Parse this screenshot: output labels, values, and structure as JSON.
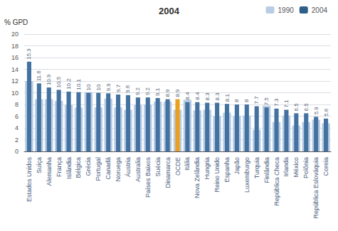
{
  "chart_data": {
    "type": "bar",
    "title": "2004",
    "ylabel": "% GPD",
    "categories": [
      "Estados Unidos",
      "Suíça",
      "Alemanha",
      "França",
      "Islândia",
      "Bélgica",
      "Grécia",
      "Portugal",
      "Canadá",
      "Noruega",
      "Áustria",
      "Australia",
      "Países Baixos",
      "Suécia",
      "Dinamarca",
      "OCDE",
      "Itália",
      "Nova Zelândia",
      "Hungria",
      "Reino Unido",
      "Espanha",
      "Japão",
      "Luxemburgo",
      "Turquia",
      "Finlândia",
      "República Checa",
      "Irlanda",
      "México",
      "Polônia",
      "República Eslováquia",
      "Coreia"
    ],
    "series": [
      {
        "name": "1990",
        "color": "#b8cce4",
        "values": [
          12.0,
          8.9,
          8.9,
          8.6,
          7.9,
          7.5,
          10.1,
          7.5,
          9.0,
          7.5,
          7.1,
          7.9,
          8.0,
          8.5,
          8.5,
          7.1,
          8.8,
          7.0,
          7.1,
          6.0,
          6.6,
          6.0,
          6.1,
          3.7,
          7.8,
          5.0,
          6.1,
          4.4,
          5.0,
          5.4,
          4.8
        ]
      },
      {
        "name": "2004",
        "color": "#2e5f8a",
        "data_labels": true,
        "colors": [
          "#4472a0",
          "#4472a0",
          "#4472a0",
          "#4472a0",
          "#4472a0",
          "#4472a0",
          "#4472a0",
          "#4472a0",
          "#4472a0",
          "#4472a0",
          "#4472a0",
          "#4472a0",
          "#4472a0",
          "#4472a0",
          "#4472a0",
          "#e8a020",
          "#4472a0",
          "#4472a0",
          "#4472a0",
          "#4472a0",
          "#4472a0",
          "#4472a0",
          "#4472a0",
          "#4472a0",
          "#4472a0",
          "#4472a0",
          "#4472a0",
          "#4472a0",
          "#4472a0",
          "#4472a0",
          "#4472a0"
        ],
        "values": [
          15.3,
          11.6,
          10.9,
          10.5,
          10.2,
          10.1,
          10.0,
          10.0,
          9.9,
          9.7,
          9.6,
          9.2,
          9.2,
          9.1,
          8.9,
          8.9,
          8.4,
          8.4,
          8.3,
          8.3,
          8.1,
          8.0,
          8.0,
          7.7,
          7.5,
          7.3,
          7.1,
          6.5,
          6.5,
          5.9,
          5.6
        ]
      }
    ],
    "ylim": [
      0,
      20
    ],
    "yticks": [
      0,
      2,
      4,
      6,
      8,
      10,
      12,
      14,
      16,
      18,
      20
    ],
    "grid": true,
    "legend": "upper right"
  }
}
